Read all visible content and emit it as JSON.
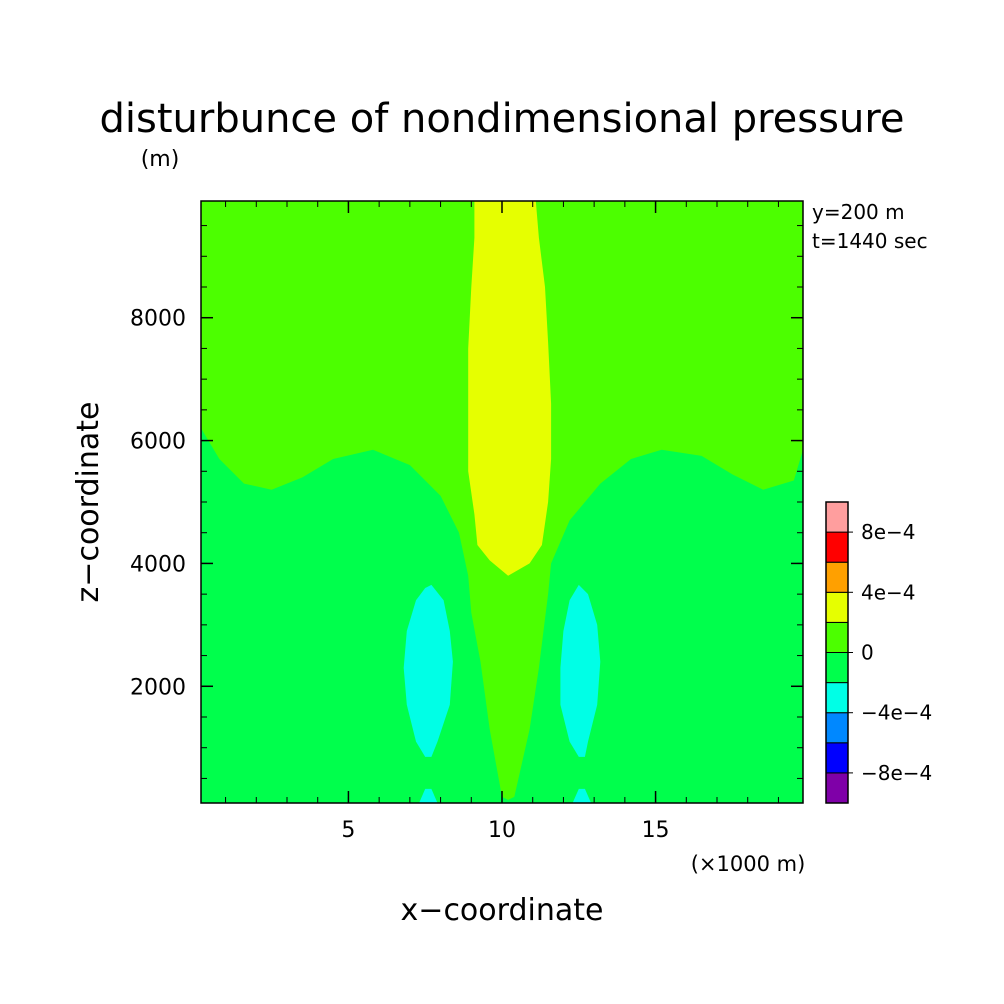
{
  "chart_data": {
    "type": "contour",
    "title": "disturbunce of nondimensional pressure",
    "unit": "(m)",
    "xlabel": "x−coordinate",
    "ylabel": "z−coordinate",
    "x_unit_note": "(×1000 m)",
    "annotations": [
      "y=200 m",
      "t=1440 sec"
    ],
    "xlim": [
      0.2,
      19.8
    ],
    "ylim": [
      100,
      9900
    ],
    "x_ticks": [
      5,
      10,
      15
    ],
    "x_tick_labels": [
      "5",
      "10",
      "15"
    ],
    "y_ticks": [
      2000,
      4000,
      6000,
      8000
    ],
    "y_tick_labels": [
      "2000",
      "4000",
      "6000",
      "8000"
    ],
    "levels": [
      -0.001,
      -0.0008,
      -0.0006,
      -0.0004,
      -0.0002,
      0,
      0.0002,
      0.0004,
      0.0006,
      0.0008,
      0.001
    ],
    "colorbar_labels": [
      {
        "value": 0.0008,
        "label": "8e−4"
      },
      {
        "value": 0.0004,
        "label": "4e−4"
      },
      {
        "value": 0,
        "label": "0"
      },
      {
        "value": -0.0004,
        "label": "−4e−4"
      },
      {
        "value": -0.0008,
        "label": "−8e−4"
      }
    ],
    "colors": [
      "#7f00a8",
      "#0000ff",
      "#0088ff",
      "#00ffe6",
      "#00ff4c",
      "#4cff00",
      "#e6ff00",
      "#ffa000",
      "#ff0000",
      "#ff9e9e"
    ],
    "regions": [
      {
        "level": "0 to 2e-4",
        "color": "#4cff00",
        "polygon": [
          [
            0.2,
            9900
          ],
          [
            19.8,
            9900
          ],
          [
            19.8,
            5850
          ],
          [
            19.5,
            5350
          ],
          [
            18.5,
            5200
          ],
          [
            17.5,
            5450
          ],
          [
            16.5,
            5750
          ],
          [
            15.2,
            5850
          ],
          [
            14.2,
            5700
          ],
          [
            13.2,
            5300
          ],
          [
            12.2,
            4700
          ],
          [
            11.6,
            4000
          ],
          [
            11.5,
            3500
          ],
          [
            11.4,
            3100
          ],
          [
            11.2,
            2300
          ],
          [
            10.9,
            1300
          ],
          [
            10.4,
            200
          ],
          [
            10.2,
            150
          ],
          [
            10.0,
            200
          ],
          [
            9.6,
            1300
          ],
          [
            9.3,
            2400
          ],
          [
            9.0,
            3200
          ],
          [
            8.9,
            3800
          ],
          [
            8.6,
            4500
          ],
          [
            8.0,
            5100
          ],
          [
            7.0,
            5600
          ],
          [
            5.8,
            5850
          ],
          [
            4.5,
            5700
          ],
          [
            3.5,
            5400
          ],
          [
            2.5,
            5200
          ],
          [
            1.6,
            5300
          ],
          [
            0.8,
            5700
          ],
          [
            0.2,
            6200
          ]
        ]
      },
      {
        "level": "2e-4 to 4e-4",
        "color": "#e6ff00",
        "polygon": [
          [
            9.1,
            9900
          ],
          [
            11.1,
            9900
          ],
          [
            11.2,
            9300
          ],
          [
            11.4,
            8500
          ],
          [
            11.5,
            7600
          ],
          [
            11.6,
            6600
          ],
          [
            11.6,
            5700
          ],
          [
            11.5,
            5000
          ],
          [
            11.3,
            4300
          ],
          [
            10.9,
            4000
          ],
          [
            10.2,
            3800
          ],
          [
            9.6,
            4050
          ],
          [
            9.2,
            4300
          ],
          [
            9.1,
            4800
          ],
          [
            8.9,
            5500
          ],
          [
            8.9,
            6500
          ],
          [
            8.9,
            7500
          ],
          [
            9.0,
            8500
          ],
          [
            9.1,
            9300
          ]
        ]
      },
      {
        "level": "-4e-4 to -2e-4",
        "color": "#00ffe6",
        "polygon": [
          [
            7.7,
            3650
          ],
          [
            8.1,
            3400
          ],
          [
            8.3,
            2900
          ],
          [
            8.4,
            2400
          ],
          [
            8.3,
            1700
          ],
          [
            7.9,
            1100
          ],
          [
            7.7,
            850
          ],
          [
            7.5,
            850
          ],
          [
            7.2,
            1100
          ],
          [
            6.9,
            1700
          ],
          [
            6.8,
            2300
          ],
          [
            6.9,
            2900
          ],
          [
            7.2,
            3400
          ],
          [
            7.5,
            3600
          ]
        ]
      },
      {
        "level": "-4e-4 to -2e-4",
        "color": "#00ffe6",
        "polygon": [
          [
            12.5,
            3650
          ],
          [
            12.8,
            3500
          ],
          [
            13.1,
            3000
          ],
          [
            13.2,
            2400
          ],
          [
            13.1,
            1700
          ],
          [
            12.8,
            1100
          ],
          [
            12.7,
            850
          ],
          [
            12.5,
            850
          ],
          [
            12.2,
            1100
          ],
          [
            11.9,
            1700
          ],
          [
            11.9,
            2300
          ],
          [
            12.0,
            2900
          ],
          [
            12.2,
            3400
          ]
        ]
      },
      {
        "level": "-4e-4 to -2e-4",
        "color": "#00ffe6",
        "polygon": [
          [
            7.3,
            100
          ],
          [
            7.5,
            330
          ],
          [
            7.7,
            330
          ],
          [
            7.9,
            100
          ]
        ]
      },
      {
        "level": "-4e-4 to -2e-4",
        "color": "#00ffe6",
        "polygon": [
          [
            12.3,
            100
          ],
          [
            12.5,
            330
          ],
          [
            12.7,
            330
          ],
          [
            12.9,
            100
          ]
        ]
      }
    ]
  }
}
